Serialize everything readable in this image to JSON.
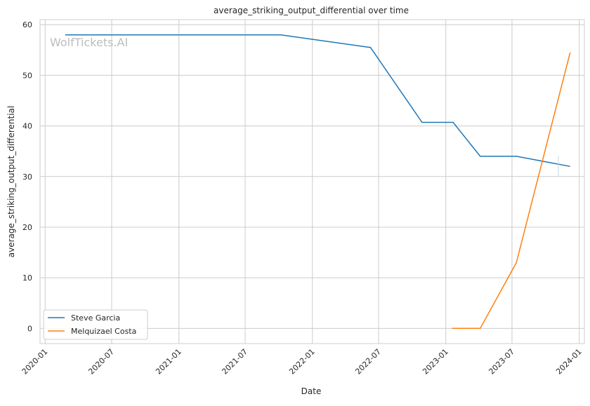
{
  "chart_data": {
    "type": "line",
    "title": "average_striking_output_differential over time",
    "xlabel": "Date",
    "ylabel": "average_striking_output_differential",
    "watermark": "WolfTickets.AI",
    "xlim": [
      "2019-12-18",
      "2024-01-15"
    ],
    "ylim": [
      -3,
      61
    ],
    "x_ticks": [
      "2020-01",
      "2020-07",
      "2021-01",
      "2021-07",
      "2022-01",
      "2022-07",
      "2023-01",
      "2023-07",
      "2024-01"
    ],
    "y_ticks": [
      0,
      10,
      20,
      30,
      40,
      50,
      60
    ],
    "grid": true,
    "legend_position": "lower-left",
    "series": [
      {
        "name": "Steve Garcia",
        "color": "#1f77b4",
        "x": [
          "2020-02-25",
          "2021-10-07",
          "2022-06-09",
          "2022-10-28",
          "2023-01-21",
          "2023-04-05",
          "2023-07-13",
          "2023-12-07"
        ],
        "y": [
          58,
          58,
          55.5,
          40.7,
          40.7,
          34,
          34,
          32
        ]
      },
      {
        "name": "Melquizael Costa",
        "color": "#ff7f0e",
        "x": [
          "2023-01-18",
          "2023-04-05",
          "2023-07-13",
          "2023-12-07"
        ],
        "y": [
          0,
          0,
          13,
          54.5
        ]
      }
    ]
  }
}
